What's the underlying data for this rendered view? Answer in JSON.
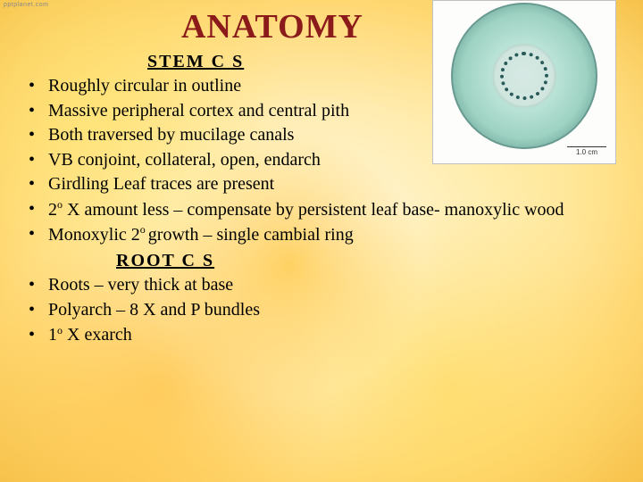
{
  "title": "ANATOMY",
  "title_color": "#8b1a1a",
  "title_fontsize": 38,
  "body_fontsize": 20,
  "body_color": "#000000",
  "background_palette": [
    "#fff8e0",
    "#ffecb0",
    "#ffd873",
    "#f7c24a",
    "#ffc846"
  ],
  "stem": {
    "heading": "STEM C S",
    "bullets": [
      "Roughly circular in outline",
      "Massive peripheral cortex and central pith",
      "Both traversed by mucilage canals",
      "VB conjoint, collateral, open, endarch",
      "Girdling Leaf traces are present",
      "2° X amount less – compensate by persistent leaf base- manoxylic wood",
      "Monoxylic 2° growth – single cambial ring"
    ]
  },
  "root": {
    "heading": "ROOT C S",
    "bullets": [
      "Roots – very thick at base",
      "Polyarch – 8 X and P bundles",
      "1° X exarch"
    ]
  },
  "thumbnail": {
    "description": "Stem cross-section micrograph, roughly circular, greenish cortex with darker outer ring and dotted inner ring of vascular bundles",
    "outer_colors": [
      "#e6efe9",
      "#16383d",
      "#5e8f88",
      "#9ed2c2",
      "#cfe5de"
    ],
    "vb_ring_color": "#2a5a59",
    "scale_label": "1.0 cm",
    "border_color": "#c0c0c0",
    "background": "#fdfdfb"
  },
  "attribution": "pptplanet.com"
}
